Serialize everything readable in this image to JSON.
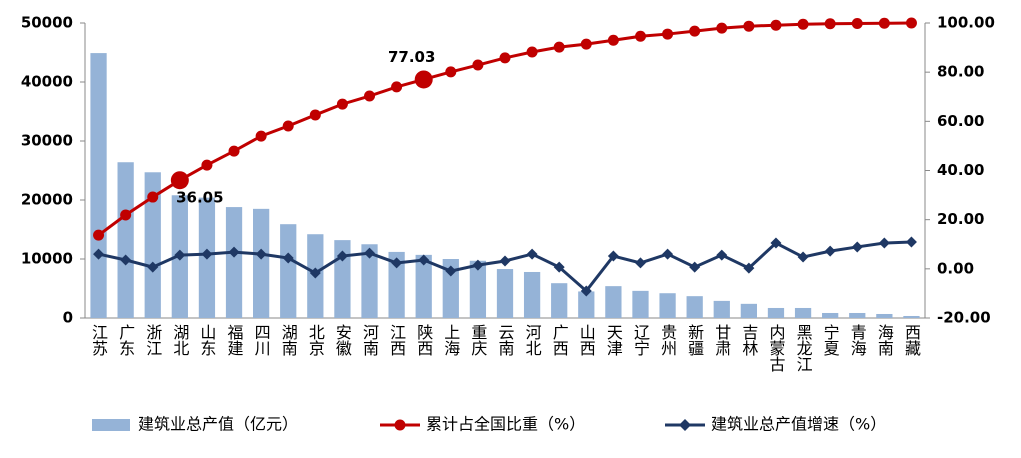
{
  "chart_data": {
    "type": "bar-line",
    "categories": [
      "江苏",
      "广东",
      "浙江",
      "湖北",
      "山东",
      "福建",
      "四川",
      "湖南",
      "北京",
      "安徽",
      "河南",
      "江西",
      "陕西",
      "上海",
      "重庆",
      "云南",
      "河北",
      "广西",
      "山西",
      "天津",
      "辽宁",
      "贵州",
      "新疆",
      "甘肃",
      "吉林",
      "内蒙古",
      "黑龙江",
      "宁夏",
      "青海",
      "海南",
      "西藏"
    ],
    "series": [
      {
        "name": "建筑业总产值（亿元）",
        "type": "bar",
        "color": "#95b3d7",
        "values": [
          44900,
          26400,
          24700,
          20800,
          20400,
          18800,
          18500,
          15900,
          14200,
          13200,
          12500,
          11200,
          10700,
          10000,
          9700,
          8300,
          7800,
          5900,
          4500,
          5400,
          4600,
          4200,
          3700,
          2900,
          2400,
          1700,
          1700,
          850,
          850,
          680,
          340
        ]
      },
      {
        "name": "累计占全国比重（%）",
        "type": "line",
        "axis": "y2",
        "color": "#c00000",
        "marker": "circle",
        "values": [
          13.7,
          21.9,
          29.2,
          36.05,
          42.2,
          47.9,
          54.0,
          58.1,
          62.6,
          67.0,
          70.3,
          74.0,
          77.03,
          80.1,
          82.9,
          85.8,
          88.2,
          90.2,
          91.4,
          93.0,
          94.6,
          95.5,
          96.7,
          97.9,
          98.7,
          99.1,
          99.5,
          99.7,
          99.8,
          99.9,
          100
        ],
        "value_labels": [
          null,
          null,
          null,
          "36.05",
          null,
          null,
          null,
          null,
          null,
          null,
          null,
          null,
          "77.03",
          null,
          null,
          null,
          null,
          null,
          null,
          null,
          null,
          null,
          null,
          null,
          null,
          null,
          null,
          null,
          null,
          null,
          null
        ]
      },
      {
        "name": "建筑业总产值增速（%）",
        "type": "line",
        "axis": "y2",
        "color": "#1f3864",
        "marker": "diamond",
        "values": [
          6.0,
          3.6,
          0.7,
          5.6,
          6.0,
          6.8,
          6.0,
          4.4,
          -1.7,
          5.2,
          6.4,
          2.4,
          3.6,
          -0.9,
          1.5,
          3.2,
          6.0,
          0.7,
          -9.0,
          5.2,
          2.4,
          6.0,
          0.7,
          5.6,
          0.3,
          10.5,
          4.8,
          7.2,
          8.9,
          10.5,
          10.9
        ]
      }
    ],
    "ylim": [
      0,
      50000
    ],
    "yticks": [
      0,
      10000,
      20000,
      30000,
      40000,
      50000
    ],
    "y2lim": [
      -20,
      100
    ],
    "y2ticks": [
      {
        "value": -20,
        "label": "-20.00"
      },
      {
        "value": 0,
        "label": "0.00"
      },
      {
        "value": 20,
        "label": "20.00"
      },
      {
        "value": 40,
        "label": "40.00"
      },
      {
        "value": 60,
        "label": "60.00"
      },
      {
        "value": 80,
        "label": "80.00"
      },
      {
        "value": 100,
        "label": "100.00"
      }
    ],
    "legend": "bottom"
  }
}
